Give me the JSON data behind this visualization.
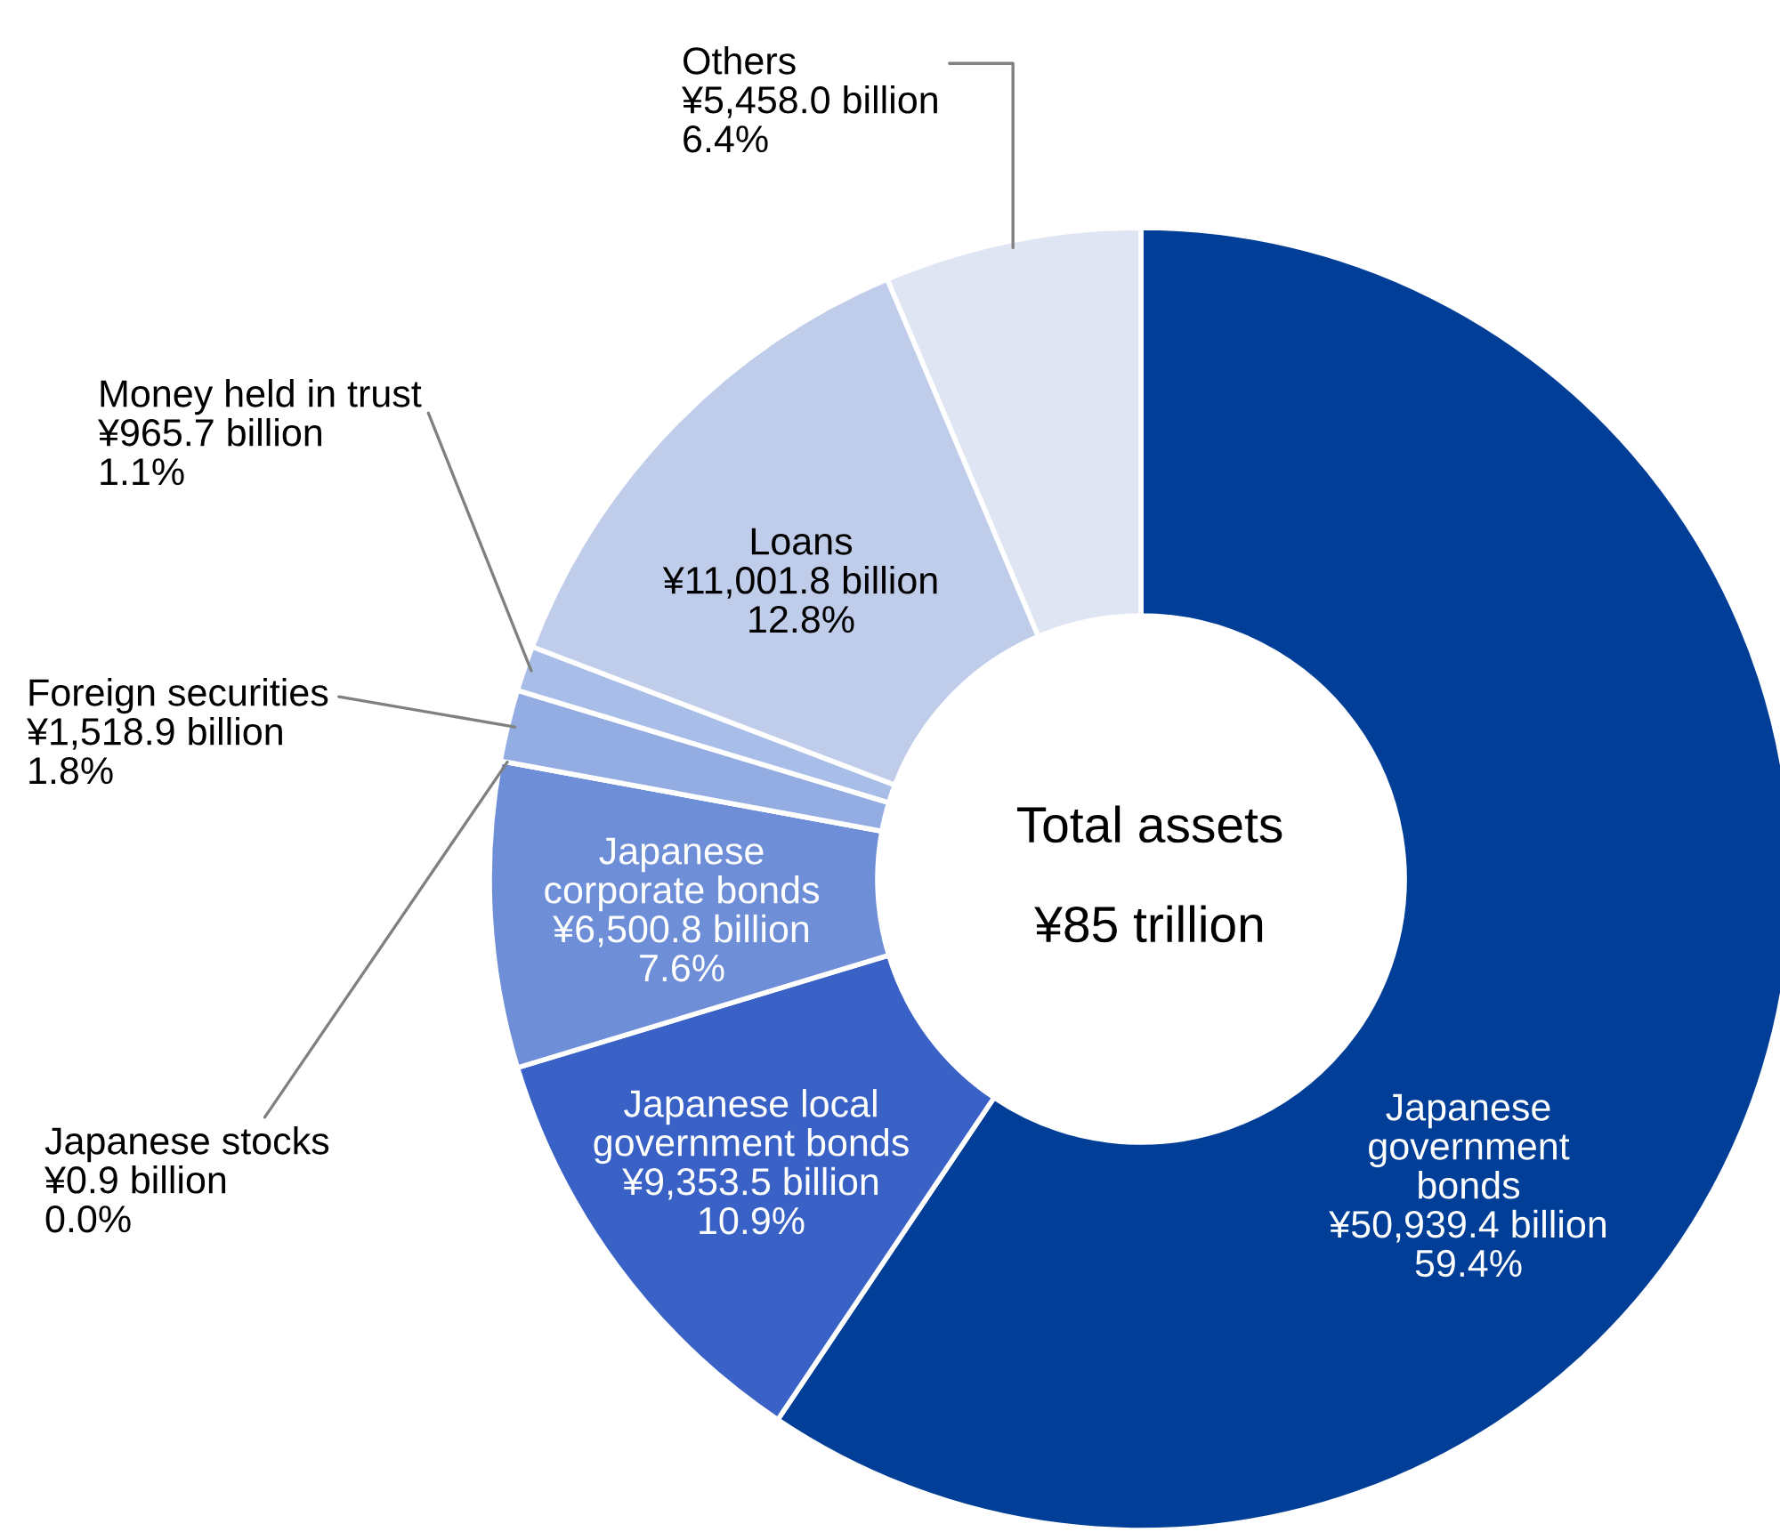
{
  "chart_data": {
    "type": "donut",
    "categories": [
      "Japanese government bonds",
      "Japanese local government bonds",
      "Japanese corporate bonds",
      "Japanese stocks",
      "Foreign securities",
      "Money held in trust",
      "Loans",
      "Others"
    ],
    "values": [
      50939.4,
      9353.5,
      6500.8,
      0.9,
      1518.9,
      965.7,
      11001.8,
      5458.0
    ],
    "colors": [
      "#003e98",
      "#3a62c6",
      "#6e8ed8",
      "#7f9ddc",
      "#93ace2",
      "#a8bde8",
      "#c0cdea",
      "#e0e5f3"
    ],
    "value_labels": [
      "¥50,939.4 billion",
      "¥9,353.5 billion",
      "¥6,500.8 billion",
      "¥0.9 billion",
      "¥1,518.9 billion",
      "¥965.7 billion",
      "¥11,001.8 billion",
      "¥5,458.0 billion"
    ],
    "annotations": [
      "Total assets",
      "¥85 trillion",
      {
        "text": "59.4%",
        "x": "Japanese government bonds"
      },
      {
        "text": "10.9%",
        "x": "Japanese local government bonds"
      },
      {
        "text": "7.6%",
        "x": "Japanese corporate bonds"
      },
      {
        "text": "0.0%",
        "x": "Japanese stocks"
      },
      {
        "text": "1.8%",
        "x": "Foreign securities"
      },
      {
        "text": "1.1%",
        "x": "Money held in trust"
      },
      {
        "text": "12.8%",
        "x": "Loans"
      },
      {
        "text": "6.4%",
        "x": "Others"
      }
    ],
    "legend": false
  }
}
